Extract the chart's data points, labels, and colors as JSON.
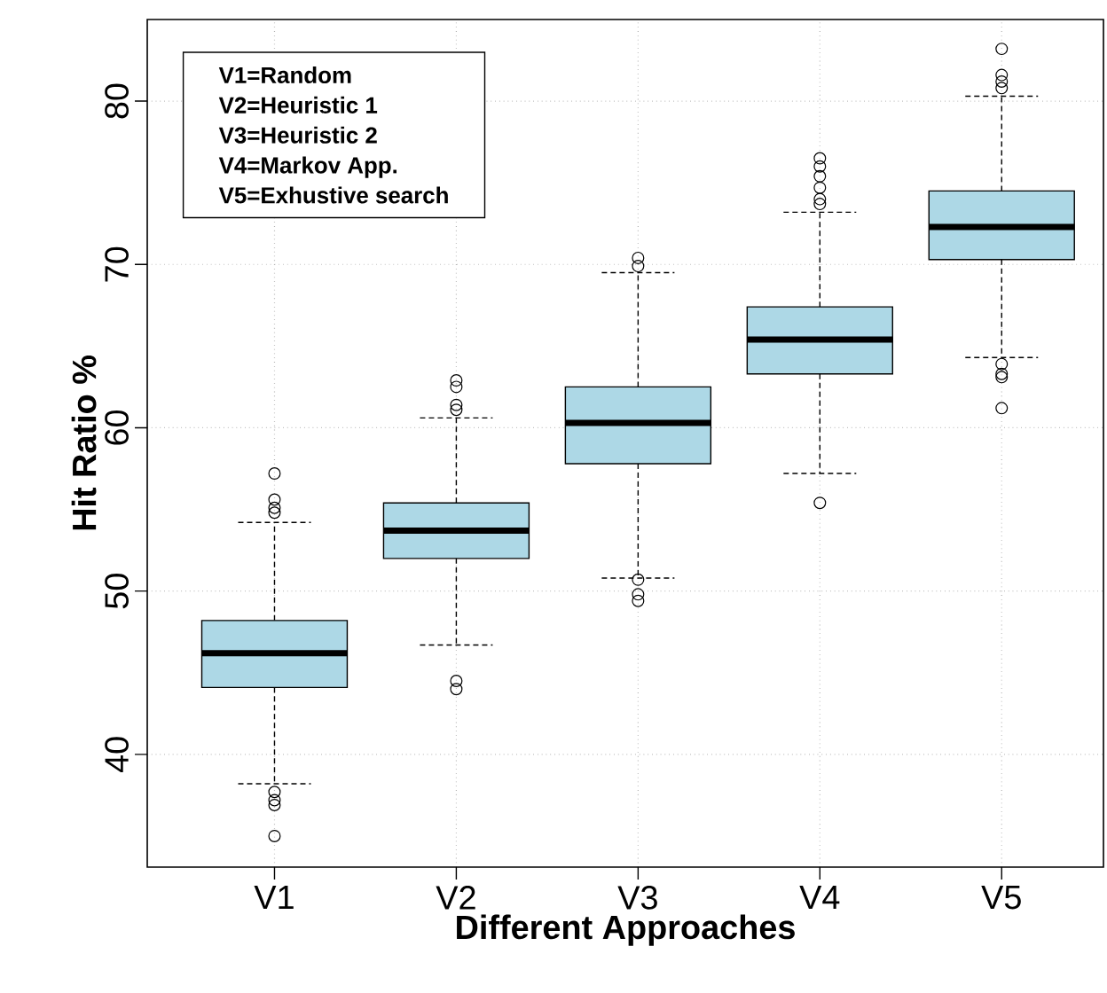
{
  "chart_data": {
    "type": "box",
    "xlabel": "Different Approaches",
    "ylabel": "Hit Ratio %",
    "categories": [
      "V1",
      "V2",
      "V3",
      "V4",
      "V5"
    ],
    "color": "#add8e6",
    "boxes": [
      {
        "low": 38.2,
        "q1": 44.1,
        "median": 46.2,
        "q3": 48.2,
        "high": 54.2,
        "outliers": [
          57.2,
          55.6,
          55.1,
          54.8,
          37.7,
          37.2,
          36.9,
          35.0
        ]
      },
      {
        "low": 46.7,
        "q1": 52.0,
        "median": 53.7,
        "q3": 55.4,
        "high": 60.6,
        "outliers": [
          62.9,
          62.5,
          61.4,
          61.1,
          44.5,
          44.0
        ]
      },
      {
        "low": 50.8,
        "q1": 57.8,
        "median": 60.3,
        "q3": 62.5,
        "high": 69.5,
        "outliers": [
          70.4,
          69.9,
          50.7,
          49.8,
          49.4
        ]
      },
      {
        "low": 57.2,
        "q1": 63.3,
        "median": 65.4,
        "q3": 67.4,
        "high": 73.2,
        "outliers": [
          76.5,
          76.0,
          75.4,
          74.7,
          74.0,
          73.7,
          55.4
        ]
      },
      {
        "low": 64.3,
        "q1": 70.3,
        "median": 72.3,
        "q3": 74.5,
        "high": 80.3,
        "outliers": [
          83.2,
          81.6,
          81.2,
          80.8,
          63.9,
          63.3,
          63.1,
          61.2
        ]
      }
    ],
    "ylim": [
      33.1,
      85
    ],
    "yticks": [
      40,
      50,
      60,
      70,
      80
    ],
    "grid": true,
    "annotations": [
      "V1=Random",
      "V2=Heuristic 1",
      "V3=Heuristic 2",
      "V4=Markov App.",
      "V5=Exhustive search"
    ]
  }
}
